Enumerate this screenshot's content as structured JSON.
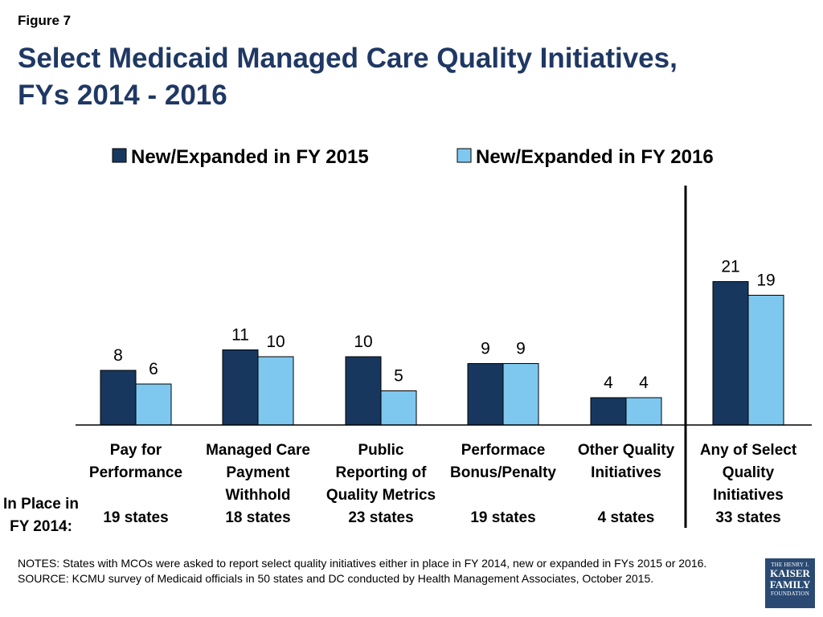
{
  "header": {
    "figure_label": "Figure 7",
    "title_line1": "Select Medicaid Managed Care Quality Initiatives,",
    "title_line2": "FYs 2014 - 2016"
  },
  "chart_data": {
    "type": "bar",
    "title": "Select Medicaid Managed Care Quality Initiatives, FYs 2014 - 2016",
    "categories": [
      [
        "Pay for",
        "Performance"
      ],
      [
        "Managed Care",
        "Payment",
        "Withhold"
      ],
      [
        "Public",
        "Reporting of",
        "Quality Metrics"
      ],
      [
        "Performace",
        "Bonus/Penalty"
      ],
      [
        "Other Quality",
        "Initiatives"
      ],
      [
        "Any of Select",
        "Quality",
        "Initiatives"
      ]
    ],
    "series": [
      {
        "name": "New/Expanded in FY 2015",
        "color": "#17375e",
        "values": [
          8,
          11,
          10,
          9,
          4,
          21
        ]
      },
      {
        "name": "New/Expanded in FY 2016",
        "color": "#7ec8f0",
        "values": [
          6,
          10,
          5,
          9,
          4,
          19
        ]
      }
    ],
    "in_place_label": [
      "In Place in",
      "FY 2014:"
    ],
    "in_place_values": [
      "19 states",
      "18 states",
      "23 states",
      "19 states",
      "4 states",
      "33 states"
    ],
    "ylim": [
      0,
      25
    ],
    "grid": false,
    "legend_position": "top"
  },
  "footer": {
    "notes": "NOTES: States with MCOs were asked to report select quality initiatives either in place in FY 2014, new or expanded in FYs 2015 or 2016.",
    "source": "SOURCE: KCMU survey of Medicaid officials in 50 states and DC conducted by Health Management Associates, October 2015."
  },
  "logo": {
    "line1": "THE HENRY J.",
    "line2": "KAISER",
    "line3": "FAMILY",
    "line4": "FOUNDATION"
  }
}
